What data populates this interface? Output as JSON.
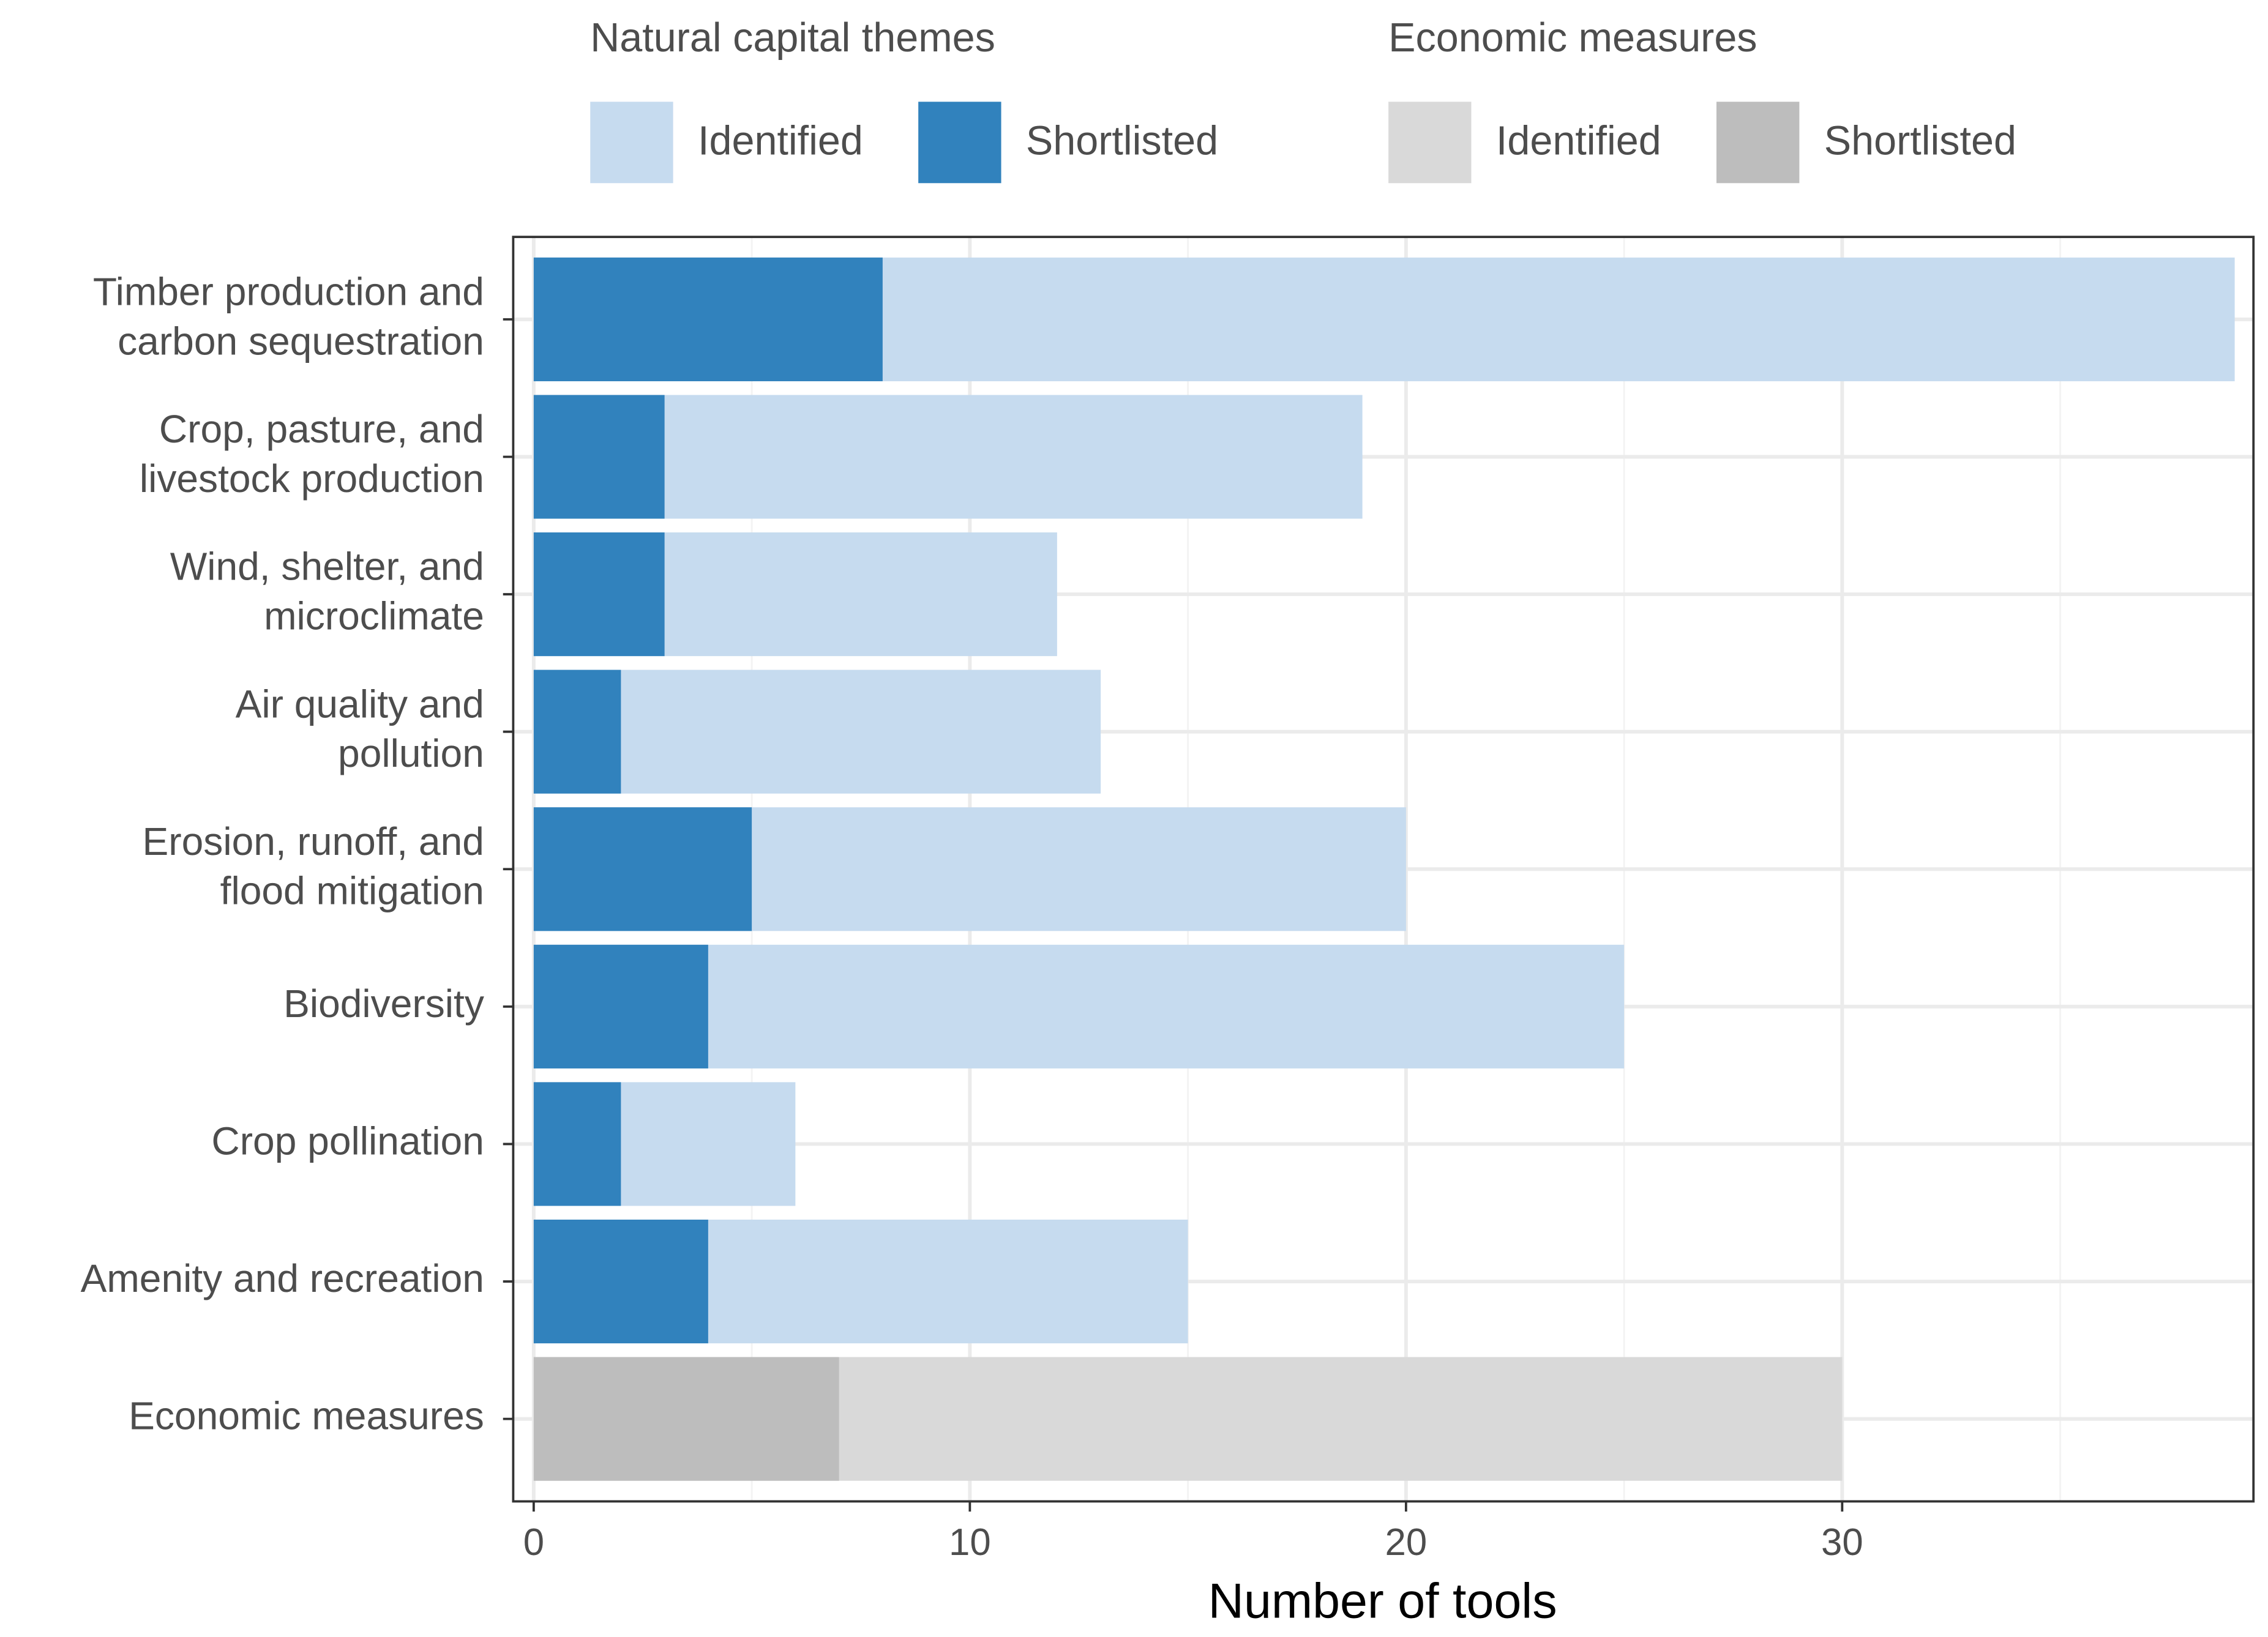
{
  "chart_data": {
    "type": "bar",
    "orientation": "horizontal",
    "x_label": "Number of tools",
    "categories": [
      "Timber production and\ncarbon sequestration",
      "Crop, pasture, and\nlivestock production",
      "Wind, shelter, and\nmicroclimate",
      "Air quality and\npollution",
      "Erosion, runoff, and\nflood mitigation",
      "Biodiversity",
      "Crop pollination",
      "Amenity and recreation",
      "Economic measures"
    ],
    "legend_groups": [
      {
        "title": "Natural capital themes",
        "series": [
          {
            "name": "Identified",
            "color": "#c6dbef",
            "values": [
              39,
              19,
              12,
              13,
              20,
              25,
              6,
              15,
              null
            ]
          },
          {
            "name": "Shortlisted",
            "color": "#3182bd",
            "values": [
              8,
              3,
              3,
              2,
              5,
              4,
              2,
              4,
              null
            ]
          }
        ]
      },
      {
        "title": "Economic measures",
        "series": [
          {
            "name": "Identified",
            "color": "#d9d9d9",
            "values": [
              null,
              null,
              null,
              null,
              null,
              null,
              null,
              null,
              30
            ]
          },
          {
            "name": "Shortlisted",
            "color": "#bdbdbd",
            "values": [
              null,
              null,
              null,
              null,
              null,
              null,
              null,
              null,
              7
            ]
          }
        ]
      }
    ],
    "xlim": [
      -0.47,
      39.43
    ],
    "xticks": [
      0,
      10,
      20,
      30
    ],
    "xminor": [
      5,
      15,
      25,
      35
    ],
    "grid": true
  }
}
